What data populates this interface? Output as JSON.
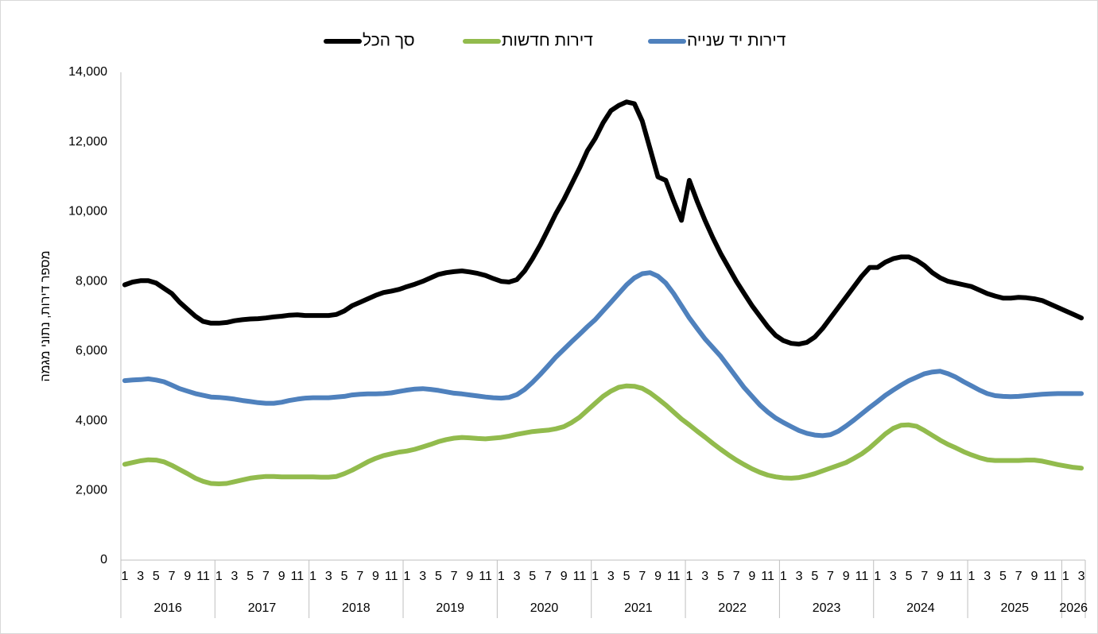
{
  "chart_data": {
    "type": "line",
    "y_label": "מספר דירות, נתוני מגמה",
    "categories": [
      "1",
      null,
      "3",
      null,
      "5",
      null,
      "7",
      null,
      "9",
      null,
      "11",
      null,
      "1",
      null,
      "3",
      null,
      "5",
      null,
      "7",
      null,
      "9",
      null,
      "11",
      null,
      "1",
      null,
      "3",
      null,
      "5",
      null,
      "7",
      null,
      "9",
      null,
      "11",
      null,
      "1",
      null,
      "3",
      null,
      "5",
      null,
      "7",
      null,
      "9",
      null,
      "11",
      null,
      "1",
      null,
      "3",
      null,
      "5",
      null,
      "7",
      null,
      "9",
      null,
      "11",
      null,
      "1",
      null,
      "3",
      null,
      "5",
      null,
      "7",
      null,
      "9",
      null,
      "11",
      null,
      "1",
      null,
      "3",
      null,
      "5",
      null,
      "7",
      null,
      "9",
      null,
      "11",
      null,
      "1",
      null,
      "3",
      null,
      "5",
      null,
      "7",
      null,
      "9",
      null,
      "11",
      null,
      "1",
      null,
      "3",
      null,
      "5",
      null,
      "7",
      null,
      "9",
      null,
      "11",
      null,
      "1",
      null,
      "3",
      null,
      "5",
      null,
      "7",
      null,
      "9",
      null,
      "11",
      null,
      "1",
      null,
      "3"
    ],
    "year_labels": [
      "2016",
      "2017",
      "2018",
      "2019",
      "2020",
      "2021",
      "2022",
      "2023",
      "2024",
      "2025",
      "2026"
    ],
    "series": [
      {
        "name": "סך הכל",
        "color": "#000000",
        "values": [
          7900,
          7980,
          8020,
          8020,
          7950,
          7800,
          7650,
          7400,
          7200,
          7000,
          6850,
          6800,
          6800,
          6820,
          6870,
          6900,
          6920,
          6930,
          6950,
          6980,
          7000,
          7030,
          7040,
          7020,
          7020,
          7020,
          7020,
          7050,
          7150,
          7300,
          7400,
          7500,
          7600,
          7680,
          7720,
          7770,
          7850,
          7920,
          8000,
          8100,
          8200,
          8250,
          8280,
          8300,
          8270,
          8230,
          8170,
          8080,
          8000,
          7980,
          8050,
          8300,
          8650,
          9050,
          9500,
          9950,
          10350,
          10800,
          11250,
          11750,
          12100,
          12550,
          12900,
          13050,
          13150,
          13100,
          12600,
          11800,
          11000,
          10900,
          10300,
          9750,
          10900,
          10300,
          9750,
          9250,
          8800,
          8400,
          8000,
          7650,
          7300,
          7000,
          6700,
          6450,
          6300,
          6220,
          6200,
          6250,
          6400,
          6650,
          6950,
          7250,
          7550,
          7850,
          8150,
          8400,
          8400,
          8550,
          8650,
          8700,
          8700,
          8600,
          8450,
          8250,
          8100,
          8000,
          7950,
          7900,
          7850,
          7750,
          7650,
          7580,
          7520,
          7520,
          7540,
          7530,
          7500,
          7450,
          7350,
          7250,
          7150,
          7050,
          6950
        ]
      },
      {
        "name": "דירות חדשות",
        "color": "#92bb4d",
        "values": [
          2750,
          2800,
          2850,
          2880,
          2870,
          2820,
          2720,
          2600,
          2480,
          2350,
          2260,
          2200,
          2190,
          2200,
          2250,
          2300,
          2350,
          2380,
          2400,
          2400,
          2390,
          2390,
          2390,
          2390,
          2390,
          2380,
          2380,
          2400,
          2480,
          2580,
          2700,
          2820,
          2920,
          3000,
          3050,
          3100,
          3130,
          3180,
          3250,
          3320,
          3400,
          3460,
          3500,
          3520,
          3510,
          3490,
          3480,
          3500,
          3520,
          3560,
          3610,
          3650,
          3690,
          3710,
          3730,
          3770,
          3830,
          3950,
          4100,
          4300,
          4500,
          4700,
          4850,
          4960,
          5000,
          4990,
          4930,
          4800,
          4630,
          4450,
          4250,
          4050,
          3880,
          3700,
          3530,
          3350,
          3180,
          3020,
          2870,
          2740,
          2620,
          2520,
          2440,
          2390,
          2360,
          2350,
          2370,
          2420,
          2480,
          2560,
          2640,
          2720,
          2800,
          2920,
          3050,
          3220,
          3420,
          3620,
          3780,
          3870,
          3880,
          3840,
          3720,
          3580,
          3440,
          3320,
          3220,
          3110,
          3020,
          2940,
          2880,
          2860,
          2860,
          2860,
          2860,
          2870,
          2870,
          2840,
          2790,
          2740,
          2700,
          2660,
          2640
        ]
      },
      {
        "name": "דירות יד שנייה",
        "color": "#4f81bd",
        "values": [
          5150,
          5170,
          5180,
          5200,
          5170,
          5120,
          5020,
          4920,
          4850,
          4780,
          4730,
          4680,
          4670,
          4650,
          4620,
          4580,
          4550,
          4520,
          4500,
          4500,
          4530,
          4580,
          4620,
          4650,
          4660,
          4660,
          4660,
          4680,
          4700,
          4740,
          4760,
          4770,
          4770,
          4780,
          4800,
          4840,
          4880,
          4910,
          4920,
          4900,
          4870,
          4830,
          4790,
          4770,
          4740,
          4710,
          4680,
          4660,
          4650,
          4670,
          4750,
          4900,
          5100,
          5330,
          5580,
          5830,
          6050,
          6270,
          6480,
          6700,
          6900,
          7150,
          7400,
          7650,
          7900,
          8100,
          8220,
          8250,
          8150,
          7950,
          7650,
          7300,
          6950,
          6650,
          6350,
          6100,
          5850,
          5550,
          5250,
          4950,
          4700,
          4450,
          4250,
          4080,
          3950,
          3830,
          3720,
          3640,
          3590,
          3570,
          3600,
          3700,
          3850,
          4020,
          4200,
          4380,
          4550,
          4730,
          4880,
          5020,
          5150,
          5250,
          5350,
          5400,
          5420,
          5350,
          5250,
          5120,
          5000,
          4880,
          4780,
          4720,
          4700,
          4690,
          4700,
          4720,
          4740,
          4760,
          4770,
          4780,
          4780,
          4780,
          4780
        ]
      }
    ],
    "ylim": [
      0,
      14000
    ],
    "yticks": [
      0,
      {
        "value": 2000,
        "label": "2,000"
      },
      {
        "value": 4000,
        "label": "4,000"
      },
      {
        "value": 6000,
        "label": "6,000"
      },
      {
        "value": 8000,
        "label": "8,000"
      },
      {
        "value": 10000,
        "label": "10,000"
      },
      {
        "value": 12000,
        "label": "12,000"
      },
      {
        "value": 14000,
        "label": "14,000"
      }
    ],
    "legend": "top"
  }
}
